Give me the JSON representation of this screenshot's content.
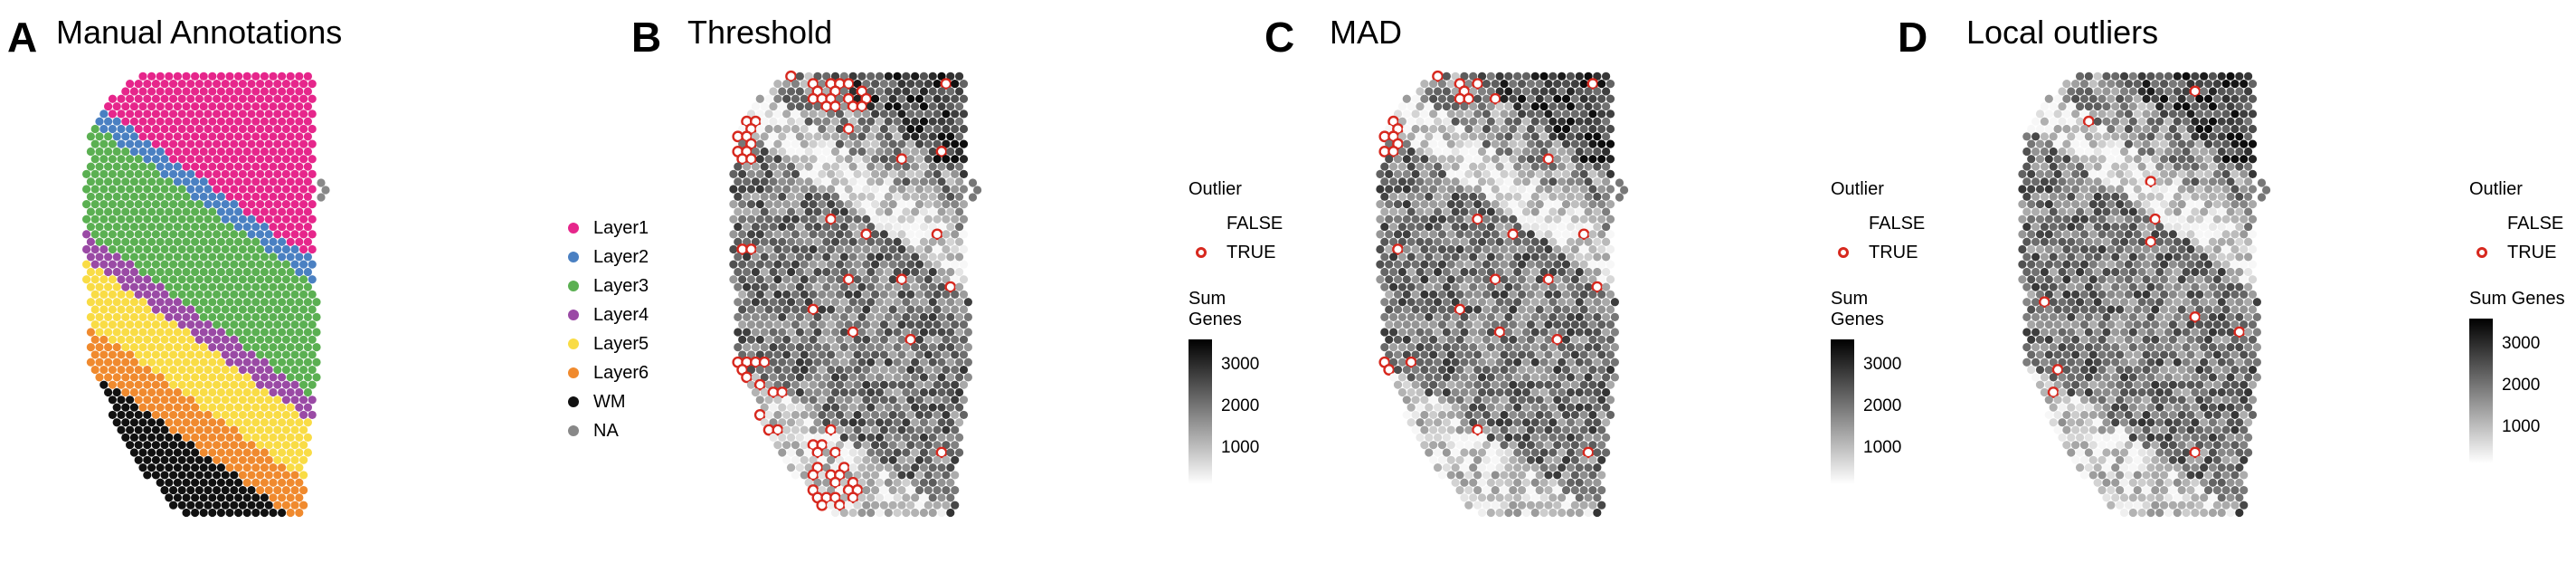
{
  "panels": [
    {
      "letter": "A",
      "title": "Manual Annotations"
    },
    {
      "letter": "B",
      "title": "Threshold"
    },
    {
      "letter": "C",
      "title": "MAD"
    },
    {
      "letter": "D",
      "title": "Local outliers"
    }
  ],
  "annotation_legend": {
    "items": [
      {
        "label": "Layer1",
        "color": "#e6268b"
      },
      {
        "label": "Layer2",
        "color": "#4a80c2"
      },
      {
        "label": "Layer3",
        "color": "#5bb052"
      },
      {
        "label": "Layer4",
        "color": "#9a4aa5"
      },
      {
        "label": "Layer5",
        "color": "#f9dc45"
      },
      {
        "label": "Layer6",
        "color": "#f08a2e"
      },
      {
        "label": "WM",
        "color": "#111111"
      },
      {
        "label": "NA",
        "color": "#888888"
      }
    ]
  },
  "outlier_legend": {
    "title": "Outlier",
    "false_label": "FALSE",
    "true_label": "TRUE",
    "ring_color": "#d7281e"
  },
  "gradient_legend": {
    "title": "Sum Genes",
    "ticks": [
      "3000",
      "2000",
      "1000"
    ]
  }
}
